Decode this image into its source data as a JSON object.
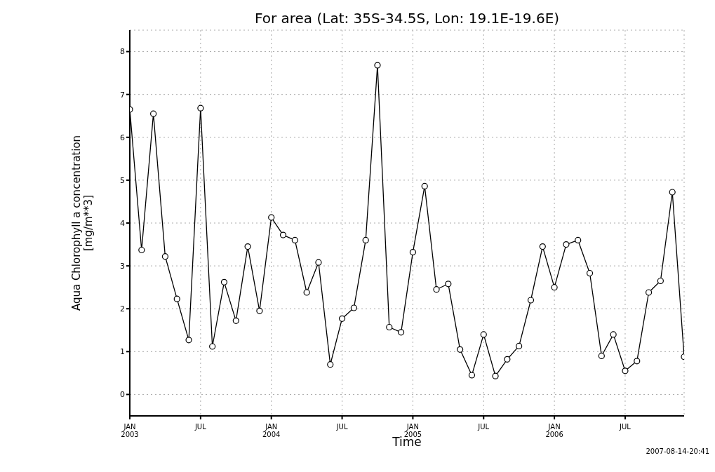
{
  "chart_data": {
    "type": "line",
    "title": "For area (Lat: 35S-34.5S, Lon: 19.1E-19.6E)",
    "xlabel": "Time",
    "ylabel": "Aqua Chlorophyll a concentration\n[mg/m**3]",
    "annotations": [
      "2007-08-14-20:41"
    ],
    "x": [
      "2003-01",
      "2003-02",
      "2003-03",
      "2003-04",
      "2003-05",
      "2003-06",
      "2003-07",
      "2003-08",
      "2003-09",
      "2003-10",
      "2003-11",
      "2003-12",
      "2004-01",
      "2004-02",
      "2004-03",
      "2004-04",
      "2004-05",
      "2004-06",
      "2004-07",
      "2004-08",
      "2004-09",
      "2004-10",
      "2004-11",
      "2004-12",
      "2005-01",
      "2005-02",
      "2005-03",
      "2005-04",
      "2005-05",
      "2005-06",
      "2005-07",
      "2005-08",
      "2005-09",
      "2005-10",
      "2005-11",
      "2005-12",
      "2006-01",
      "2006-02",
      "2006-03",
      "2006-04",
      "2006-05",
      "2006-06",
      "2006-07",
      "2006-08",
      "2006-09",
      "2006-10",
      "2006-11",
      "2006-12"
    ],
    "series": [
      {
        "color": "#000000",
        "values": [
          6.65,
          3.37,
          6.55,
          3.22,
          2.23,
          1.27,
          6.68,
          1.12,
          2.62,
          1.72,
          3.45,
          1.95,
          4.13,
          3.72,
          3.6,
          2.38,
          3.08,
          0.7,
          1.77,
          2.02,
          3.6,
          7.68,
          1.57,
          1.45,
          3.32,
          4.86,
          2.45,
          2.58,
          1.05,
          0.45,
          1.4,
          0.43,
          0.82,
          1.13,
          2.2,
          3.45,
          2.5,
          3.5,
          3.6,
          2.83,
          0.9,
          1.4,
          0.55,
          0.78,
          2.38,
          2.65,
          4.72,
          0.88
        ]
      }
    ],
    "xlim": [
      "2003-01",
      "2006-12"
    ],
    "xticks": [
      {
        "value": "2003-01",
        "label": "JAN\n2003"
      },
      {
        "value": "2003-07",
        "label": "JUL"
      },
      {
        "value": "2004-01",
        "label": "JAN\n2004"
      },
      {
        "value": "2004-07",
        "label": "JUL"
      },
      {
        "value": "2005-01",
        "label": "JAN\n2005"
      },
      {
        "value": "2005-07",
        "label": "JUL"
      },
      {
        "value": "2006-01",
        "label": "JAN\n2006"
      },
      {
        "value": "2006-07",
        "label": "JUL"
      }
    ],
    "ylim": [
      -0.5,
      8.5
    ],
    "yticks": [
      0,
      1,
      2,
      3,
      4,
      5,
      6,
      7,
      8
    ],
    "grid": true,
    "marker": "circle",
    "line_style": "solid",
    "legend": false
  }
}
